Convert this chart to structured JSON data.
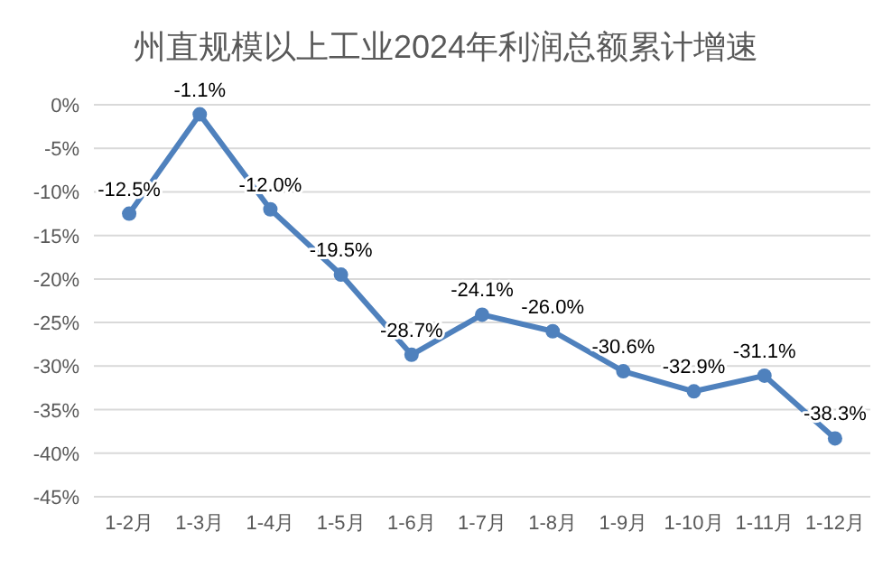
{
  "chart_data": {
    "type": "line",
    "title": "州直规模以上工业2024年利润总额累计增速",
    "categories": [
      "1-2月",
      "1-3月",
      "1-4月",
      "1-5月",
      "1-6月",
      "1-7月",
      "1-8月",
      "1-9月",
      "1-10月",
      "1-11月",
      "1-12月"
    ],
    "series": [
      {
        "color": "#4f81bd",
        "values": [
          -12.5,
          -1.1,
          -12.0,
          -19.5,
          -28.7,
          -24.1,
          -26.0,
          -30.6,
          -32.9,
          -31.1,
          -38.3
        ],
        "value_labels": [
          "-12.5%",
          "-1.1%",
          "-12.0%",
          "-19.5%",
          "-28.7%",
          "-24.1%",
          "-26.0%",
          "-30.6%",
          "-32.9%",
          "-31.1%",
          "-38.3%"
        ]
      }
    ],
    "ylim": [
      -45,
      0
    ],
    "yticks": [
      {
        "value": 0,
        "label": "0%"
      },
      {
        "value": -5,
        "label": "-5%"
      },
      {
        "value": -10,
        "label": "-10%"
      },
      {
        "value": -15,
        "label": "-15%"
      },
      {
        "value": -20,
        "label": "-20%"
      },
      {
        "value": -25,
        "label": "-25%"
      },
      {
        "value": -30,
        "label": "-30%"
      },
      {
        "value": -35,
        "label": "-35%"
      },
      {
        "value": -40,
        "label": "-40%"
      },
      {
        "value": -45,
        "label": "-45%"
      }
    ],
    "grid": "y",
    "marker": "circle",
    "line_style": "solid"
  }
}
